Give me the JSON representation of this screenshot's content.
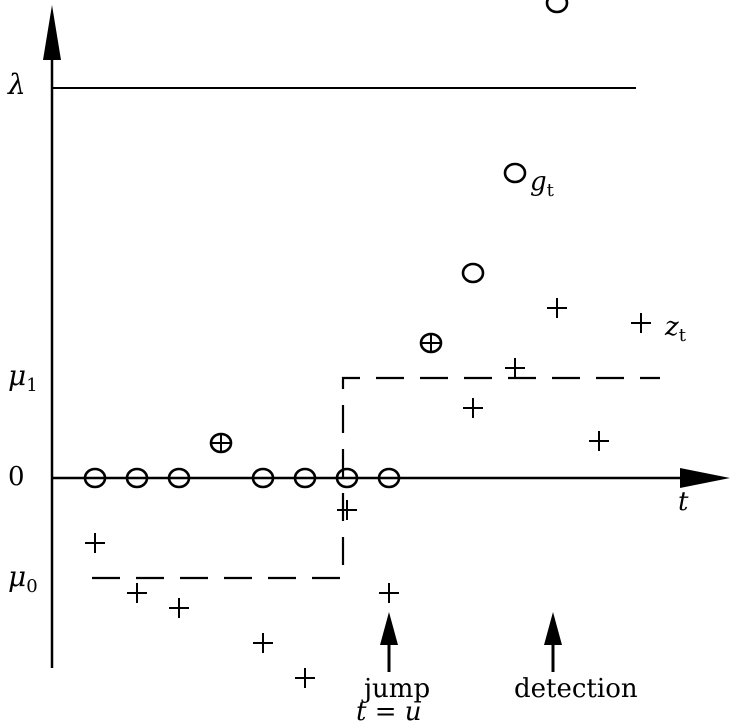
{
  "labels": {
    "lambda": "λ",
    "mu1": "μ",
    "mu1_sub": "1",
    "zero": "0",
    "mu0": "μ",
    "mu0_sub": "0",
    "t_axis": "t",
    "g_label": "g",
    "g_sub": "t",
    "z_label": "z",
    "z_sub": "t",
    "jump": "jump",
    "jump_eq": "t = u",
    "detection": "detection"
  },
  "chart_data": {
    "type": "scatter",
    "lambda": 3.9,
    "mu1": 1.0,
    "mu0": -1.0,
    "jump_time": 7,
    "detection_time": 11,
    "t_range": [
      0,
      14
    ],
    "y_range": [
      -2,
      4.5
    ],
    "series": [
      {
        "name": "g",
        "marker": "circle",
        "points": [
          [
            1,
            0
          ],
          [
            2,
            0
          ],
          [
            3,
            0
          ],
          [
            4,
            0.35
          ],
          [
            5,
            0
          ],
          [
            6,
            0
          ],
          [
            7,
            0
          ],
          [
            8,
            0
          ],
          [
            9,
            1.35
          ],
          [
            10,
            2.05
          ],
          [
            11,
            3.05
          ],
          [
            12,
            4.75
          ]
        ]
      },
      {
        "name": "z",
        "marker": "plus",
        "points": [
          [
            1,
            -0.65
          ],
          [
            2,
            -1.15
          ],
          [
            3,
            -1.3
          ],
          [
            4,
            0.35
          ],
          [
            5,
            -1.65
          ],
          [
            6,
            -2.0
          ],
          [
            7,
            -0.32
          ],
          [
            8,
            -1.15
          ],
          [
            9,
            1.35
          ],
          [
            10,
            0.7
          ],
          [
            11,
            1.1
          ],
          [
            12,
            1.7
          ],
          [
            13,
            0.37
          ],
          [
            14,
            1.55
          ]
        ]
      }
    ],
    "reference_lines": {
      "threshold": "lambda",
      "mean_before": "mu0",
      "mean_after": "mu1"
    }
  }
}
